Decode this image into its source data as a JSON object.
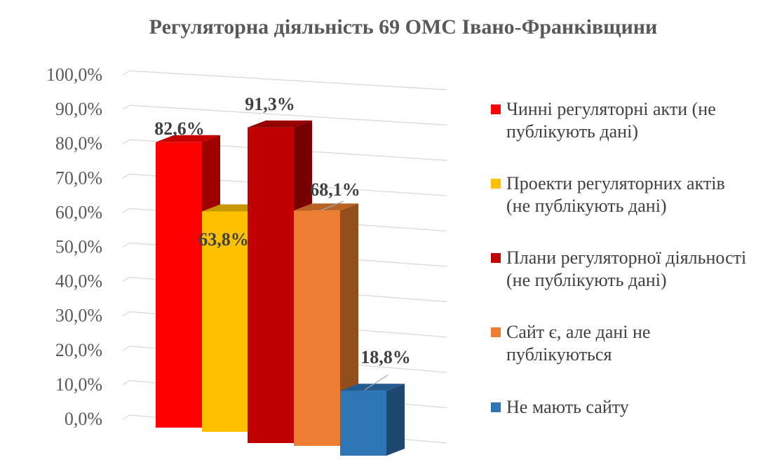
{
  "chart_data": {
    "type": "bar",
    "title": "Регуляторна діяльність 69 ОМС Івано-Франківщини",
    "y_ticks": [
      "0,0%",
      "10,0%",
      "20,0%",
      "30,0%",
      "40,0%",
      "50,0%",
      "60,0%",
      "70,0%",
      "80,0%",
      "90,0%",
      "100,0%"
    ],
    "ylim": [
      0,
      100
    ],
    "grid": true,
    "legend_position": "right",
    "series": [
      {
        "name": "Чинні регуляторні акти (не публікують дані)",
        "value": 82.6,
        "label": "82,6%",
        "color": "#ff0000"
      },
      {
        "name": "Проекти регуляторних актів (не публікують дані)",
        "value": 63.8,
        "label": "63,8%",
        "color": "#ffc000"
      },
      {
        "name": "Плани регуляторної діяльності (не публікують дані)",
        "value": 91.3,
        "label": "91,3%",
        "color": "#c00000"
      },
      {
        "name": "Сайт є, але дані не публікуються",
        "value": 68.1,
        "label": "68,1%",
        "color": "#ed7d31"
      },
      {
        "name": "Не мають сайту",
        "value": 18.8,
        "label": "18,8%",
        "color": "#2e75b6"
      }
    ]
  }
}
